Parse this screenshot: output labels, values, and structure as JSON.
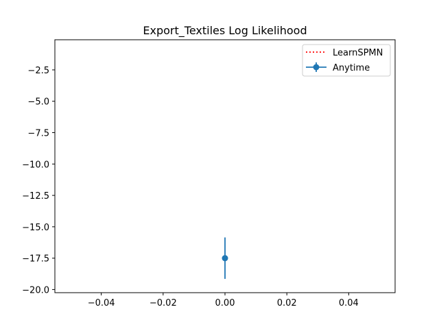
{
  "chart_data": {
    "type": "line",
    "title": "Export_Textiles Log Likelihood",
    "xlabel": "",
    "ylabel": "",
    "xlim": [
      -0.055,
      0.055
    ],
    "ylim": [
      -20.25,
      -0.1
    ],
    "x_ticks": [
      -0.04,
      -0.02,
      0.0,
      0.02,
      0.04
    ],
    "x_tick_labels": [
      "−0.04",
      "−0.02",
      "0.00",
      "0.02",
      "0.04"
    ],
    "y_ticks": [
      -2.5,
      -5.0,
      -7.5,
      -10.0,
      -12.5,
      -15.0,
      -17.5,
      -20.0
    ],
    "y_tick_labels": [
      "−2.5",
      "−5.0",
      "−7.5",
      "−10.0",
      "−12.5",
      "−15.0",
      "−17.5",
      "−20.0"
    ],
    "grid": false,
    "legend_position": "top-right",
    "series": [
      {
        "name": "LearnSPMN",
        "color": "#ff0000",
        "line_style": "dotted",
        "x": [],
        "y": []
      },
      {
        "name": "Anytime",
        "color": "#1f77b4",
        "line_style": "solid",
        "marker": "circle",
        "x": [
          0.0
        ],
        "y": [
          -17.5
        ],
        "yerr": [
          1.65
        ]
      }
    ]
  }
}
